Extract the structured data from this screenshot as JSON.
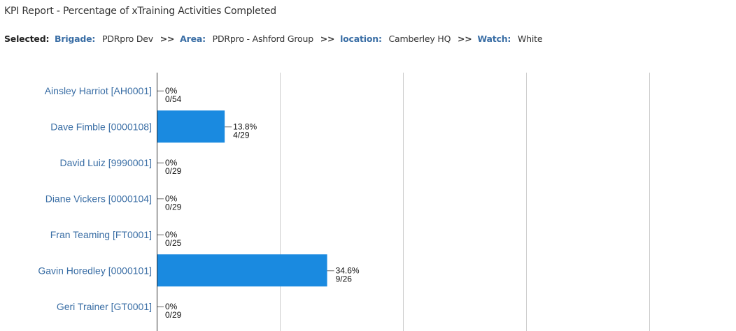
{
  "report": {
    "title": "KPI Report - Percentage of xTraining Activities Completed"
  },
  "selection": {
    "label": "Selected:",
    "brigade_key": "Brigade:",
    "brigade_value": "PDRpro Dev",
    "area_key": "Area:",
    "area_value": "PDRpro - Ashford Group",
    "location_key": "location:",
    "location_value": "Camberley HQ",
    "watch_key": "Watch:",
    "watch_value": "White",
    "separator": ">>"
  },
  "colors": {
    "bar": "#1a8ae0",
    "category_label": "#3a6ea5",
    "gridline": "#cccccc",
    "axis": "#333333"
  },
  "chart_data": {
    "type": "bar",
    "orientation": "horizontal",
    "xlim": [
      0,
      100
    ],
    "grid": true,
    "categories": [
      "Ainsley Harriot [AH0001]",
      "Dave Fimble [0000108]",
      "David Luiz [9990001]",
      "Diane Vickers [0000104]",
      "Fran Teaming [FT0001]",
      "Gavin Horedley [0000101]",
      "Geri Trainer [GT0001]"
    ],
    "values": [
      0,
      13.8,
      0,
      0,
      0,
      34.6,
      0
    ],
    "value_labels": [
      "0%",
      "13.8%",
      "0%",
      "0%",
      "0%",
      "34.6%",
      "0%"
    ],
    "fraction_labels": [
      "0/54",
      "4/29",
      "0/29",
      "0/29",
      "0/25",
      "9/26",
      "0/29"
    ]
  }
}
